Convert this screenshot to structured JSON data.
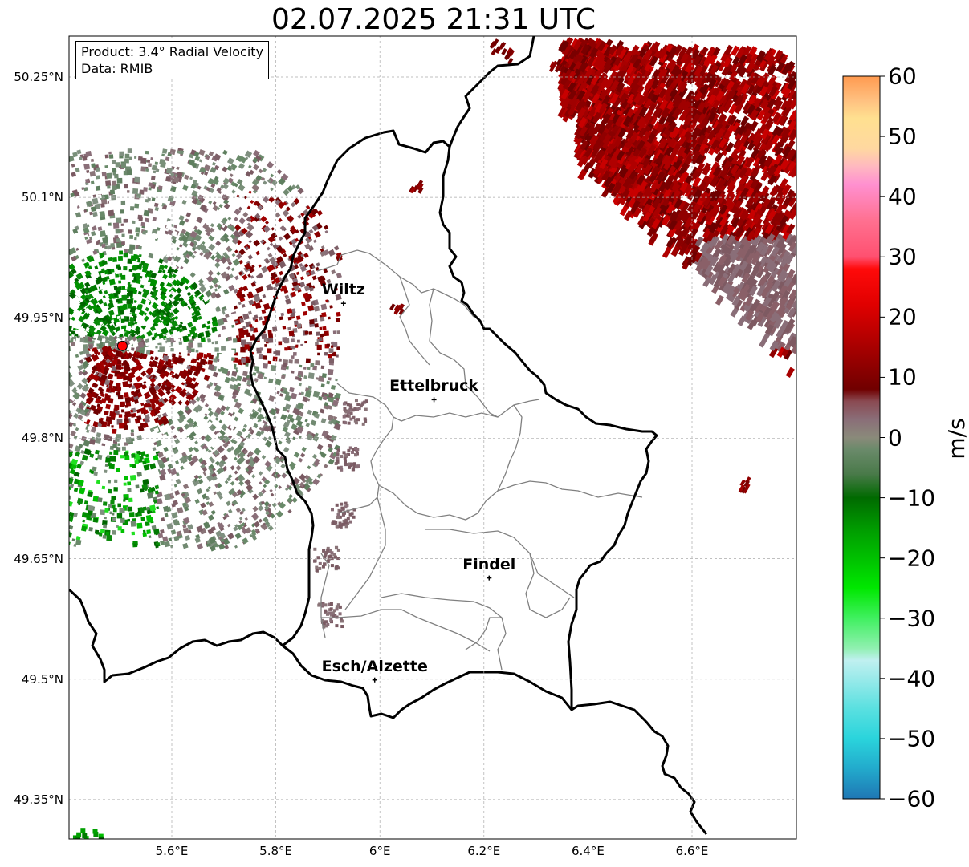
{
  "title": "02.07.2025 21:31 UTC",
  "info": {
    "product": "Product: 3.4° Radial Velocity",
    "data": "Data: RMIB"
  },
  "cities": [
    {
      "name": "Wiltz",
      "lon": 5.93,
      "lat": 49.968
    },
    {
      "name": "Ettelbruck",
      "lon": 6.104,
      "lat": 49.848
    },
    {
      "name": "Findel",
      "lon": 6.21,
      "lat": 49.626
    },
    {
      "name": "Esch/Alzette",
      "lon": 5.99,
      "lat": 49.499
    }
  ],
  "radar_site": {
    "lon": 5.505,
    "lat": 49.915
  },
  "extent": {
    "lon_min": 5.4,
    "lon_max": 6.8,
    "lat_min": 49.3,
    "lat_max": 50.3
  },
  "lat_ticks": [
    {
      "value": 50.25,
      "label": "50.25°N"
    },
    {
      "value": 50.1,
      "label": "50.1°N"
    },
    {
      "value": 49.95,
      "label": "49.95°N"
    },
    {
      "value": 49.8,
      "label": "49.8°N"
    },
    {
      "value": 49.65,
      "label": "49.65°N"
    },
    {
      "value": 49.5,
      "label": "49.5°N"
    },
    {
      "value": 49.35,
      "label": "49.35°N"
    }
  ],
  "lon_ticks": [
    {
      "value": 5.6,
      "label": "5.6°E"
    },
    {
      "value": 5.8,
      "label": "5.8°E"
    },
    {
      "value": 6.0,
      "label": "6°E"
    },
    {
      "value": 6.2,
      "label": "6.2°E"
    },
    {
      "value": 6.4,
      "label": "6.4°E"
    },
    {
      "value": 6.6,
      "label": "6.6°E"
    }
  ],
  "colorbar": {
    "label": "m/s",
    "min": -60,
    "max": 60,
    "ticks": [
      {
        "value": 60,
        "label": "60"
      },
      {
        "value": 50,
        "label": "50"
      },
      {
        "value": 40,
        "label": "40"
      },
      {
        "value": 30,
        "label": "30"
      },
      {
        "value": 20,
        "label": "20"
      },
      {
        "value": 10,
        "label": "10"
      },
      {
        "value": 0,
        "label": "0"
      },
      {
        "value": -10,
        "label": "−10"
      },
      {
        "value": -20,
        "label": "−20"
      },
      {
        "value": -30,
        "label": "−30"
      },
      {
        "value": -40,
        "label": "−40"
      },
      {
        "value": -50,
        "label": "−50"
      },
      {
        "value": -60,
        "label": "−60"
      }
    ],
    "stops": [
      {
        "v": -60,
        "c": "#1f77b4"
      },
      {
        "v": -55,
        "c": "#22aacc"
      },
      {
        "v": -50,
        "c": "#2ad4dc"
      },
      {
        "v": -45,
        "c": "#5ae0e0"
      },
      {
        "v": -40,
        "c": "#9aeaea"
      },
      {
        "v": -37,
        "c": "#c0f0f0"
      },
      {
        "v": -35,
        "c": "#90f0b0"
      },
      {
        "v": -30,
        "c": "#40f060"
      },
      {
        "v": -25,
        "c": "#00e800"
      },
      {
        "v": -20,
        "c": "#00c000"
      },
      {
        "v": -15,
        "c": "#009a00"
      },
      {
        "v": -10,
        "c": "#006a00"
      },
      {
        "v": -6,
        "c": "#4a7a4a"
      },
      {
        "v": -2,
        "c": "#6a8a6a"
      },
      {
        "v": 0,
        "c": "#8a8a7a"
      },
      {
        "v": 3,
        "c": "#8a6e78"
      },
      {
        "v": 6,
        "c": "#8a4a52"
      },
      {
        "v": 8,
        "c": "#700000"
      },
      {
        "v": 15,
        "c": "#a80000"
      },
      {
        "v": 22,
        "c": "#e00000"
      },
      {
        "v": 28,
        "c": "#ff0a0a"
      },
      {
        "v": 30,
        "c": "#ff5070"
      },
      {
        "v": 36,
        "c": "#ff7090"
      },
      {
        "v": 42,
        "c": "#ff90d0"
      },
      {
        "v": 45,
        "c": "#ffb8c0"
      },
      {
        "v": 48,
        "c": "#ffd8a0"
      },
      {
        "v": 53,
        "c": "#ffe090"
      },
      {
        "v": 56,
        "c": "#ffc080"
      },
      {
        "v": 60,
        "c": "#ff9a50"
      }
    ]
  },
  "colors": {
    "border": "#000000",
    "canton": "#808080",
    "grid": "#bbbbbb",
    "radar_marker": "#ff0000"
  }
}
